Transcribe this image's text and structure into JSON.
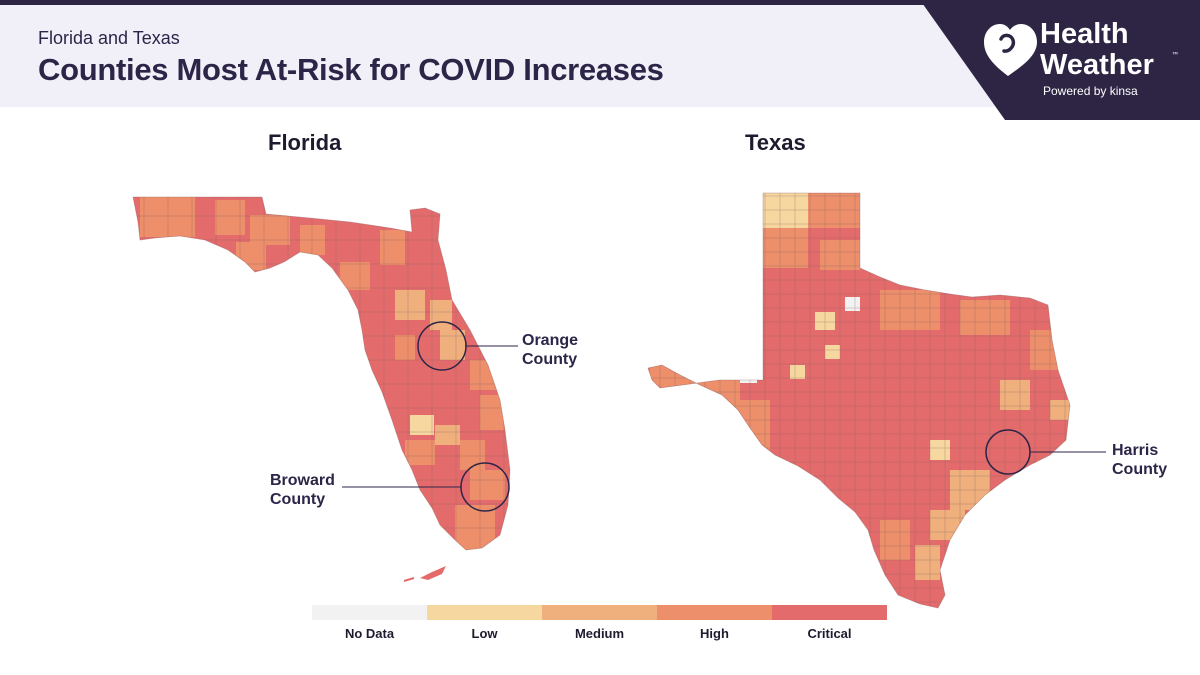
{
  "header": {
    "subtitle": "Florida and Texas",
    "title": "Counties Most At-Risk for COVID Increases"
  },
  "logo": {
    "name_line1": "Health",
    "name_line2": "Weather",
    "trademark": "™",
    "powered_by": "Powered by kinsa",
    "icon": "heart-icon"
  },
  "maps": {
    "florida": {
      "title": "Florida",
      "callouts": [
        {
          "label_line1": "Orange",
          "label_line2": "County"
        },
        {
          "label_line1": "Broward",
          "label_line2": "County"
        }
      ]
    },
    "texas": {
      "title": "Texas",
      "callouts": [
        {
          "label_line1": "Harris",
          "label_line2": "County"
        }
      ]
    }
  },
  "legend": {
    "items": [
      {
        "label": "No Data",
        "color": "#f2f2f2"
      },
      {
        "label": "Low",
        "color": "#f7d7a0"
      },
      {
        "label": "Medium",
        "color": "#f0b07e"
      },
      {
        "label": "High",
        "color": "#ed8f6b"
      },
      {
        "label": "Critical",
        "color": "#e46b6b"
      }
    ]
  },
  "colors": {
    "header_bg": "#f1f0f8",
    "brand_dark": "#2e2545",
    "critical": "#e46b6b",
    "high": "#ed8f6b",
    "medium": "#f0b07e",
    "low": "#f7d7a0",
    "no_data": "#f2f2f2"
  }
}
